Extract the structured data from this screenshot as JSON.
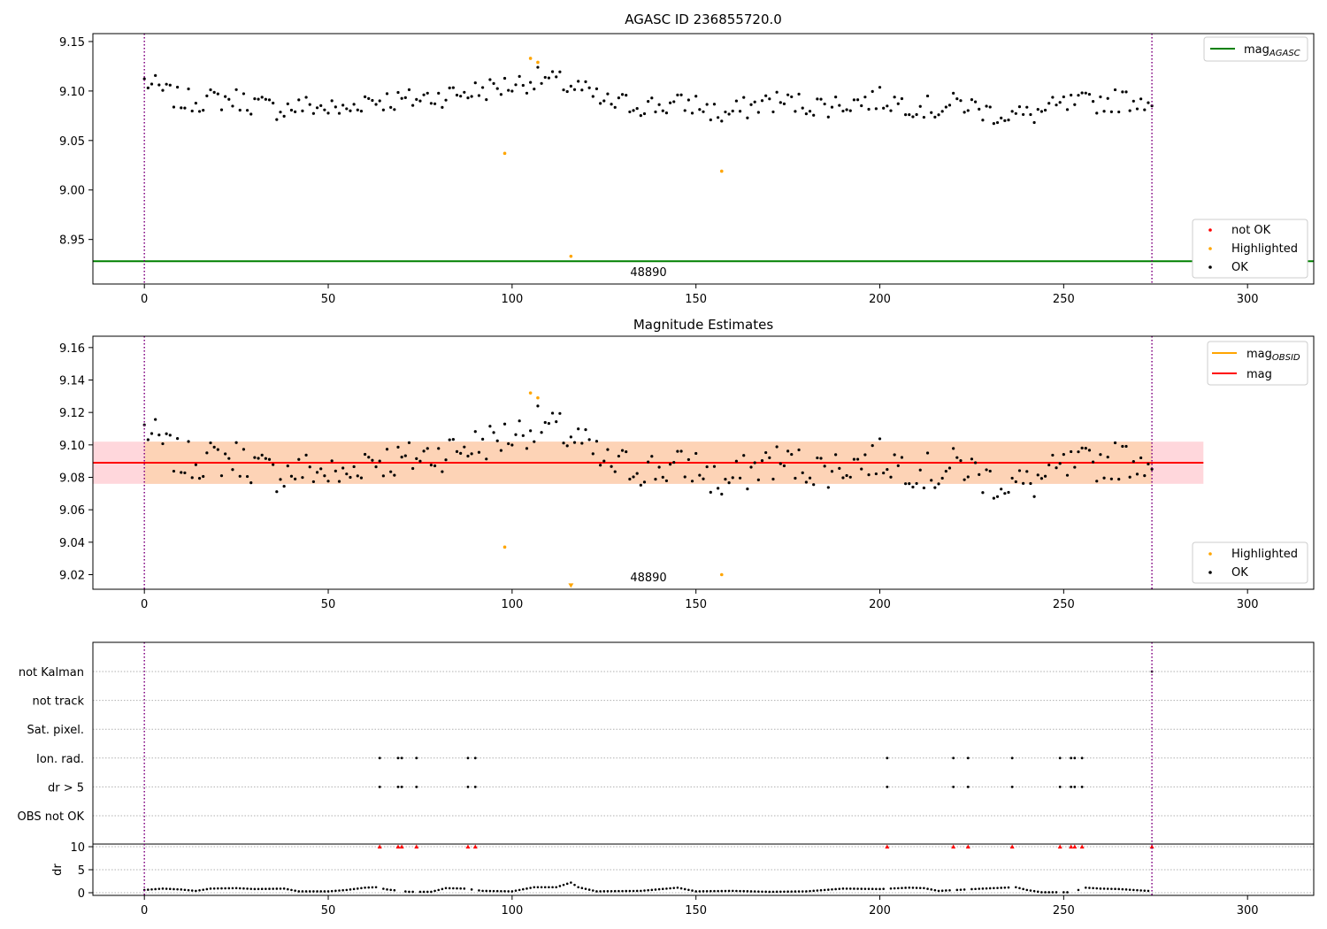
{
  "colors": {
    "ok": "#000000",
    "highlighted": "#ffa500",
    "not_ok": "#ff0000",
    "mag_agasc": "#008000",
    "mag_obsid": "#ffa500",
    "mag": "#ff0000",
    "band_outer": "#ffd7dc",
    "band_inner": "#fdd3b6",
    "obs_boundary": "#800080",
    "grid": "#b0b0b0"
  },
  "chart_data": [
    {
      "type": "scatter",
      "title": "AGASC ID 236855720.0",
      "xlim": [
        -14,
        318
      ],
      "ylim": [
        8.905,
        9.158
      ],
      "xticks": [
        0,
        50,
        100,
        150,
        200,
        250,
        300
      ],
      "yticks": [
        8.95,
        9.0,
        9.05,
        9.1,
        9.15
      ],
      "ytick_labels": [
        "8.95",
        "9.00",
        "9.05",
        "9.10",
        "9.15"
      ],
      "obsid_label": "48890",
      "obs_boundaries": [
        0,
        274
      ],
      "lines": [
        {
          "name": "mag_AGASC",
          "y": 8.928,
          "x_range": [
            -14,
            318
          ]
        }
      ],
      "legend_lines": [
        {
          "label_main": "mag",
          "label_sub": "AGASC",
          "color_key": "mag_agasc"
        }
      ],
      "legend_points": [
        {
          "label": "not OK",
          "color_key": "not_ok"
        },
        {
          "label": "Highlighted",
          "color_key": "highlighted"
        },
        {
          "label": "OK",
          "color_key": "ok"
        }
      ],
      "highlighted": [
        [
          98,
          9.037
        ],
        [
          105,
          9.133
        ],
        [
          107,
          9.129
        ],
        [
          116,
          8.933
        ],
        [
          157,
          9.019
        ]
      ],
      "not_ok": []
    },
    {
      "type": "scatter",
      "title": "Magnitude Estimates",
      "xlim": [
        -14,
        318
      ],
      "ylim": [
        9.011,
        9.167
      ],
      "xticks": [
        0,
        50,
        100,
        150,
        200,
        250,
        300
      ],
      "yticks": [
        9.02,
        9.04,
        9.06,
        9.08,
        9.1,
        9.12,
        9.14,
        9.16
      ],
      "ytick_labels": [
        "9.02",
        "9.04",
        "9.06",
        "9.08",
        "9.10",
        "9.12",
        "9.14",
        "9.16"
      ],
      "obsid_label": "48890",
      "obs_boundaries": [
        0,
        274
      ],
      "mag_line": 9.089,
      "band_outer": {
        "x": [
          -14,
          288
        ],
        "y": [
          9.076,
          9.102
        ]
      },
      "band_inner": {
        "x": [
          0,
          274
        ],
        "y": [
          9.076,
          9.102
        ]
      },
      "legend_lines": [
        {
          "label_main": "mag",
          "label_sub": "OBSID",
          "color_key": "mag_obsid"
        },
        {
          "label_main": "mag",
          "label_sub": "",
          "color_key": "mag"
        }
      ],
      "legend_points": [
        {
          "label": "Highlighted",
          "color_key": "highlighted"
        },
        {
          "label": "OK",
          "color_key": "ok"
        }
      ],
      "highlighted": [
        [
          98,
          9.037
        ],
        [
          105,
          9.132
        ],
        [
          107,
          9.129
        ],
        [
          157,
          9.02
        ]
      ],
      "offscale_markers": [
        [
          116,
          9.013
        ]
      ]
    },
    {
      "type": "scatter",
      "title": "",
      "xlim": [
        -14,
        318
      ],
      "xticks": [
        0,
        50,
        100,
        150,
        200,
        250,
        300
      ],
      "obs_boundaries": [
        0,
        274
      ],
      "flag_rows": [
        "not Kalman",
        "not track",
        "Sat. pixel.",
        "Ion. rad.",
        "dr > 5",
        "OBS not OK"
      ],
      "flags": {
        "not Kalman": [
          274
        ],
        "not track": [],
        "Sat. pixel.": [],
        "Ion. rad.": [
          64,
          69,
          70,
          74,
          88,
          90,
          202,
          220,
          224,
          236,
          249,
          252,
          253,
          255
        ],
        "dr > 5": [
          64,
          69,
          70,
          74,
          88,
          90,
          202,
          220,
          224,
          236,
          249,
          252,
          253,
          255
        ],
        "OBS not OK": []
      },
      "dr_ylabel": "dr",
      "dr_yticks": [
        0,
        5,
        10
      ],
      "dr_ylim": [
        -0.5,
        10.5
      ],
      "dr_clipped_x": [
        64,
        69,
        70,
        74,
        88,
        90,
        202,
        220,
        224,
        236,
        249,
        252,
        253,
        255,
        274
      ],
      "dr_smooth": [
        [
          0,
          0.6
        ],
        [
          5,
          0.9
        ],
        [
          10,
          0.7
        ],
        [
          14,
          0.4
        ],
        [
          18,
          0.9
        ],
        [
          25,
          1.0
        ],
        [
          30,
          0.8
        ],
        [
          38,
          0.9
        ],
        [
          42,
          0.3
        ],
        [
          50,
          0.3
        ],
        [
          55,
          0.6
        ],
        [
          60,
          1.1
        ],
        [
          63,
          1.2
        ],
        [
          66,
          0.7
        ],
        [
          72,
          0.2
        ],
        [
          78,
          0.2
        ],
        [
          82,
          1.0
        ],
        [
          87,
          0.9
        ],
        [
          92,
          0.4
        ],
        [
          100,
          0.3
        ],
        [
          106,
          1.2
        ],
        [
          112,
          1.2
        ],
        [
          116,
          2.2
        ],
        [
          118,
          1.2
        ],
        [
          123,
          0.3
        ],
        [
          135,
          0.4
        ],
        [
          145,
          1.1
        ],
        [
          150,
          0.3
        ],
        [
          160,
          0.4
        ],
        [
          170,
          0.2
        ],
        [
          180,
          0.3
        ],
        [
          190,
          0.9
        ],
        [
          200,
          0.8
        ],
        [
          208,
          1.1
        ],
        [
          212,
          1.0
        ],
        [
          216,
          0.4
        ],
        [
          228,
          0.9
        ],
        [
          237,
          1.2
        ],
        [
          240,
          0.6
        ],
        [
          244,
          0.1
        ],
        [
          252,
          0.1
        ],
        [
          256,
          1.1
        ],
        [
          260,
          0.9
        ],
        [
          265,
          0.8
        ],
        [
          273,
          0.4
        ]
      ]
    }
  ]
}
